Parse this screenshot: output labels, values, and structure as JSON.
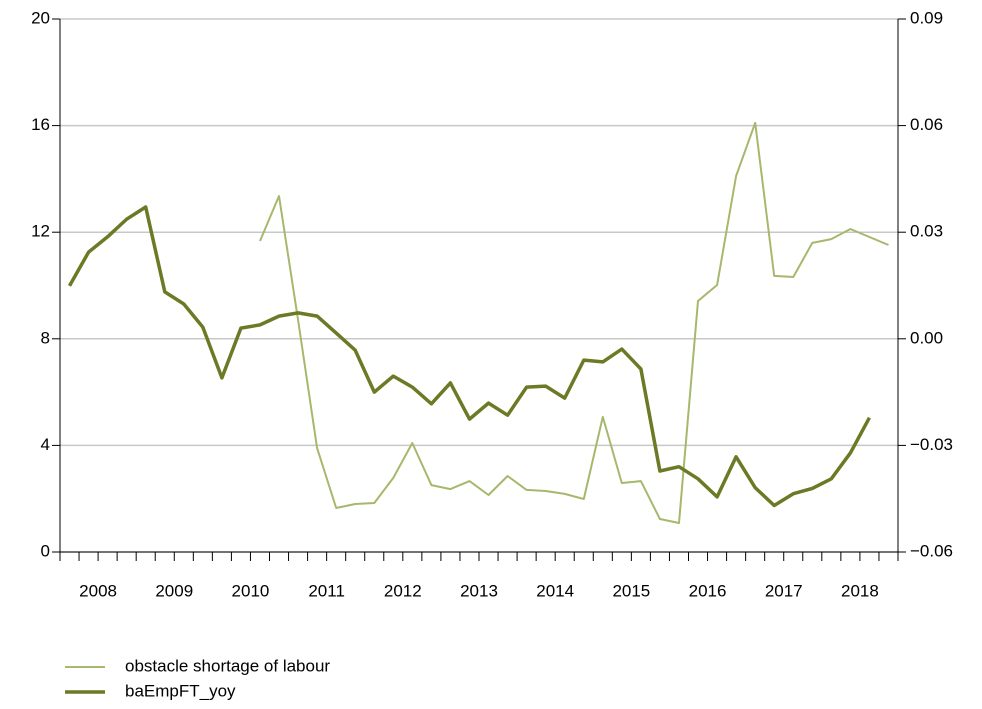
{
  "chart_data": {
    "type": "line",
    "x": [
      2008.125,
      2008.375,
      2008.625,
      2008.875,
      2009.125,
      2009.375,
      2009.625,
      2009.875,
      2010.125,
      2010.375,
      2010.625,
      2010.875,
      2011.125,
      2011.375,
      2011.625,
      2011.875,
      2012.125,
      2012.375,
      2012.625,
      2012.875,
      2013.125,
      2013.375,
      2013.625,
      2013.875,
      2014.125,
      2014.375,
      2014.625,
      2014.875,
      2015.125,
      2015.375,
      2015.625,
      2015.875,
      2016.125,
      2016.375,
      2016.625,
      2016.875,
      2017.125,
      2017.375,
      2017.625,
      2017.875,
      2018.125,
      2018.375,
      2018.625,
      2018.875
    ],
    "xlim": [
      2008,
      2019
    ],
    "xticks": [
      {
        "value": 2008.5,
        "label": "2008"
      },
      {
        "value": 2009.5,
        "label": "2009"
      },
      {
        "value": 2010.5,
        "label": "2010"
      },
      {
        "value": 2011.5,
        "label": "2011"
      },
      {
        "value": 2012.5,
        "label": "2012"
      },
      {
        "value": 2013.5,
        "label": "2013"
      },
      {
        "value": 2014.5,
        "label": "2014"
      },
      {
        "value": 2015.5,
        "label": "2015"
      },
      {
        "value": 2016.5,
        "label": "2016"
      },
      {
        "value": 2017.5,
        "label": "2017"
      },
      {
        "value": 2018.5,
        "label": "2018"
      }
    ],
    "ylim": [
      0,
      20
    ],
    "yticks": [
      0,
      4,
      8,
      12,
      16,
      20
    ],
    "y2lim": [
      -0.06,
      0.09
    ],
    "y2ticks": [
      {
        "value": -0.06,
        "label": "−0.06"
      },
      {
        "value": -0.03,
        "label": "−0.03"
      },
      {
        "value": 0,
        "label": "0.00"
      },
      0.03,
      0.06,
      0.09
    ],
    "grid": true,
    "legend": "bottom",
    "series": [
      {
        "name": "obstacle shortage of labour",
        "color": "#a6b86c",
        "width": 2,
        "values": [
          null,
          null,
          null,
          null,
          null,
          null,
          null,
          null,
          null,
          null,
          11.67,
          13.36,
          8.7,
          3.9,
          1.65,
          1.8,
          1.84,
          2.78,
          4.09,
          2.51,
          2.36,
          2.66,
          2.14,
          2.85,
          2.33,
          2.29,
          2.18,
          1.99,
          5.07,
          2.59,
          2.66,
          1.24,
          1.09,
          9.42,
          10.02,
          14.11,
          16.1,
          10.36,
          10.32,
          11.6,
          11.74,
          12.12,
          11.82,
          11.52
        ]
      },
      {
        "name": "baEmpFT_yoy",
        "color": "#6b7a25",
        "width": 3.5,
        "axis": "y2",
        "values": [
          0.0149,
          0.0244,
          0.0287,
          0.0337,
          0.0371,
          0.0132,
          0.0098,
          0.0033,
          -0.011,
          0.003,
          0.0039,
          0.0064,
          0.0073,
          0.0064,
          0.0016,
          -0.0032,
          -0.015,
          -0.0105,
          -0.0136,
          -0.0183,
          -0.0124,
          -0.0226,
          -0.0181,
          -0.0215,
          -0.0136,
          -0.0133,
          -0.0167,
          -0.006,
          -0.0065,
          -0.0029,
          -0.0085,
          -0.0372,
          -0.036,
          -0.0394,
          -0.0445,
          -0.0332,
          -0.0419,
          -0.0469,
          -0.0436,
          -0.0421,
          -0.0394,
          -0.0321,
          -0.0222,
          null
        ]
      }
    ]
  }
}
